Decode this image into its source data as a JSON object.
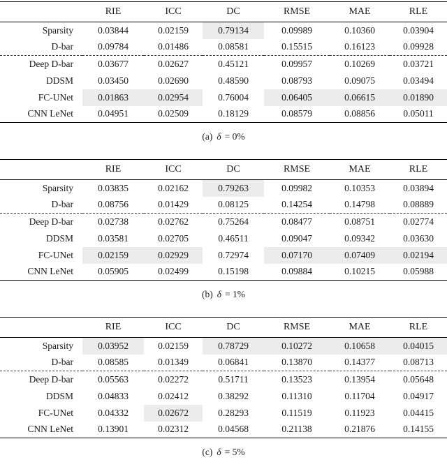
{
  "highlight_color": "#ececec",
  "tables": [
    {
      "id": "a",
      "columns": [
        "RIE",
        "ICC",
        "DC",
        "RMSE",
        "MAE",
        "RLE"
      ],
      "rows": [
        {
          "label": "Sparsity",
          "values": [
            "0.03844",
            "0.02159",
            "0.79134",
            "0.09989",
            "0.10360",
            "0.03904"
          ],
          "highlight": [
            2
          ],
          "dashed_above": false
        },
        {
          "label": "D-bar",
          "values": [
            "0.09784",
            "0.01486",
            "0.08581",
            "0.15515",
            "0.16123",
            "0.09928"
          ],
          "highlight": [],
          "dashed_above": false
        },
        {
          "label": "Deep D-bar",
          "values": [
            "0.03677",
            "0.02627",
            "0.45121",
            "0.09957",
            "0.10269",
            "0.03721"
          ],
          "highlight": [],
          "dashed_above": true
        },
        {
          "label": "DDSM",
          "values": [
            "0.03450",
            "0.02690",
            "0.48590",
            "0.08793",
            "0.09075",
            "0.03494"
          ],
          "highlight": [],
          "dashed_above": false
        },
        {
          "label": "FC-UNet",
          "values": [
            "0.01863",
            "0.02954",
            "0.76004",
            "0.06405",
            "0.06615",
            "0.01890"
          ],
          "highlight": [
            0,
            1,
            3,
            4,
            5
          ],
          "dashed_above": false
        },
        {
          "label": "CNN LeNet",
          "values": [
            "0.04951",
            "0.02509",
            "0.18129",
            "0.08579",
            "0.08856",
            "0.05011"
          ],
          "highlight": [],
          "dashed_above": false
        }
      ],
      "caption": {
        "prefix": "(a)",
        "symbol": "δ",
        "suffix": "= 0%"
      }
    },
    {
      "id": "b",
      "columns": [
        "RIE",
        "ICC",
        "DC",
        "RMSE",
        "MAE",
        "RLE"
      ],
      "rows": [
        {
          "label": "Sparsity",
          "values": [
            "0.03835",
            "0.02162",
            "0.79263",
            "0.09982",
            "0.10353",
            "0.03894"
          ],
          "highlight": [
            2
          ],
          "dashed_above": false
        },
        {
          "label": "D-bar",
          "values": [
            "0.08756",
            "0.01429",
            "0.08125",
            "0.14254",
            "0.14798",
            "0.08889"
          ],
          "highlight": [],
          "dashed_above": false
        },
        {
          "label": "Deep D-bar",
          "values": [
            "0.02738",
            "0.02762",
            "0.75264",
            "0.08477",
            "0.08751",
            "0.02774"
          ],
          "highlight": [],
          "dashed_above": true
        },
        {
          "label": "DDSM",
          "values": [
            "0.03581",
            "0.02705",
            "0.46511",
            "0.09047",
            "0.09342",
            "0.03630"
          ],
          "highlight": [],
          "dashed_above": false
        },
        {
          "label": "FC-UNet",
          "values": [
            "0.02159",
            "0.02929",
            "0.72974",
            "0.07170",
            "0.07409",
            "0.02194"
          ],
          "highlight": [
            0,
            1,
            3,
            4,
            5
          ],
          "dashed_above": false
        },
        {
          "label": "CNN LeNet",
          "values": [
            "0.05905",
            "0.02499",
            "0.15198",
            "0.09884",
            "0.10215",
            "0.05988"
          ],
          "highlight": [],
          "dashed_above": false
        }
      ],
      "caption": {
        "prefix": "(b)",
        "symbol": "δ",
        "suffix": "= 1%"
      }
    },
    {
      "id": "c",
      "columns": [
        "RIE",
        "ICC",
        "DC",
        "RMSE",
        "MAE",
        "RLE"
      ],
      "rows": [
        {
          "label": "Sparsity",
          "values": [
            "0.03952",
            "0.02159",
            "0.78729",
            "0.10272",
            "0.10658",
            "0.04015"
          ],
          "highlight": [
            0,
            2,
            3,
            4,
            5
          ],
          "dashed_above": false
        },
        {
          "label": "D-bar",
          "values": [
            "0.08585",
            "0.01349",
            "0.06841",
            "0.13870",
            "0.14377",
            "0.08713"
          ],
          "highlight": [],
          "dashed_above": false
        },
        {
          "label": "Deep D-bar",
          "values": [
            "0.05563",
            "0.02272",
            "0.51711",
            "0.13523",
            "0.13954",
            "0.05648"
          ],
          "highlight": [],
          "dashed_above": true
        },
        {
          "label": "DDSM",
          "values": [
            "0.04833",
            "0.02412",
            "0.38292",
            "0.11310",
            "0.11704",
            "0.04917"
          ],
          "highlight": [],
          "dashed_above": false
        },
        {
          "label": "FC-UNet",
          "values": [
            "0.04332",
            "0.02672",
            "0.28293",
            "0.11519",
            "0.11923",
            "0.04415"
          ],
          "highlight": [
            1
          ],
          "dashed_above": false
        },
        {
          "label": "CNN LeNet",
          "values": [
            "0.13901",
            "0.02312",
            "0.04568",
            "0.21138",
            "0.21876",
            "0.14155"
          ],
          "highlight": [],
          "dashed_above": false
        }
      ],
      "caption": {
        "prefix": "(c)",
        "symbol": "δ",
        "suffix": "= 5%"
      }
    }
  ]
}
